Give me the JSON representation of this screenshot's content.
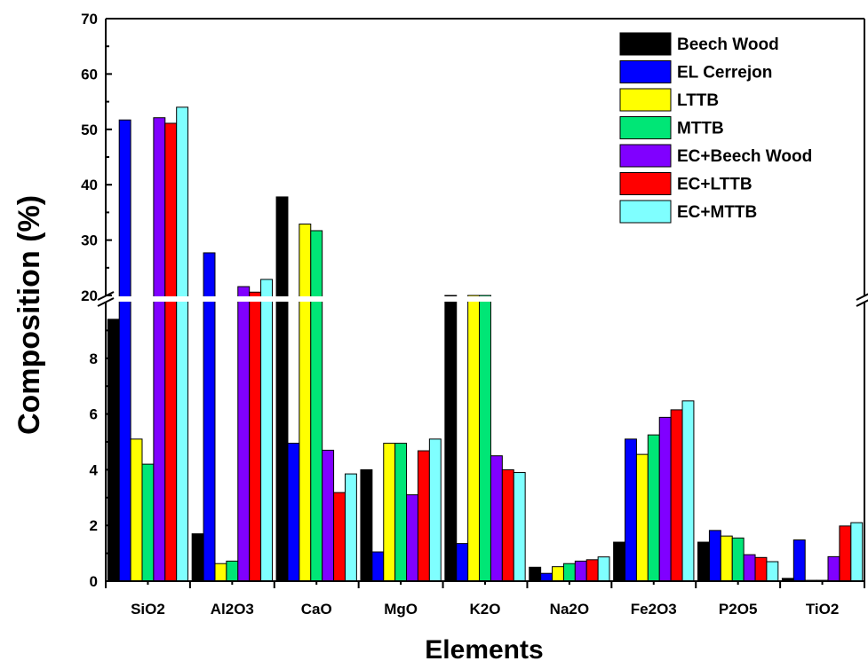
{
  "chart_data": {
    "type": "bar",
    "xlabel": "Elements",
    "ylabel": "Composition (%)",
    "categories": [
      "SiO2",
      "Al2O3",
      "CaO",
      "MgO",
      "K2O",
      "Na2O",
      "Fe2O3",
      "P2O5",
      "TiO2"
    ],
    "series": [
      {
        "name": "Beech Wood",
        "color": "#000000",
        "values": [
          9.4,
          1.7,
          37.8,
          4.0,
          20.0,
          0.5,
          1.4,
          1.4,
          0.1
        ]
      },
      {
        "name": "EL Cerrejon",
        "color": "#0000ff",
        "values": [
          51.7,
          27.7,
          4.95,
          1.05,
          1.35,
          0.28,
          5.1,
          1.82,
          1.48
        ]
      },
      {
        "name": "LTTB",
        "color": "#ffff00",
        "values": [
          5.1,
          0.63,
          32.9,
          4.95,
          20.0,
          0.52,
          4.55,
          1.62,
          0.03
        ]
      },
      {
        "name": "MTTB",
        "color": "#00e676",
        "values": [
          4.2,
          0.72,
          31.7,
          4.95,
          20.0,
          0.63,
          5.25,
          1.55,
          0.03
        ]
      },
      {
        "name": "EC+Beech Wood",
        "color": "#8000ff",
        "values": [
          52.1,
          21.6,
          4.7,
          3.1,
          4.5,
          0.72,
          5.88,
          0.95,
          0.88
        ]
      },
      {
        "name": "EC+LTTB",
        "color": "#ff0000",
        "values": [
          51.1,
          20.6,
          3.18,
          4.68,
          4.0,
          0.77,
          6.15,
          0.85,
          1.98
        ]
      },
      {
        "name": "EC+MTTB",
        "color": "#7fffff",
        "values": [
          54.0,
          22.9,
          3.85,
          5.1,
          3.9,
          0.87,
          6.47,
          0.7,
          2.1
        ]
      }
    ],
    "y_axis_break": {
      "lower_range": [
        0,
        10
      ],
      "upper_range": [
        20,
        70
      ]
    },
    "lower_ticks": [
      "0",
      "2",
      "4",
      "6",
      "8"
    ],
    "upper_ticks": [
      "20",
      "30",
      "40",
      "50",
      "60",
      "70"
    ],
    "legend_position": "top-right",
    "grid": false
  }
}
